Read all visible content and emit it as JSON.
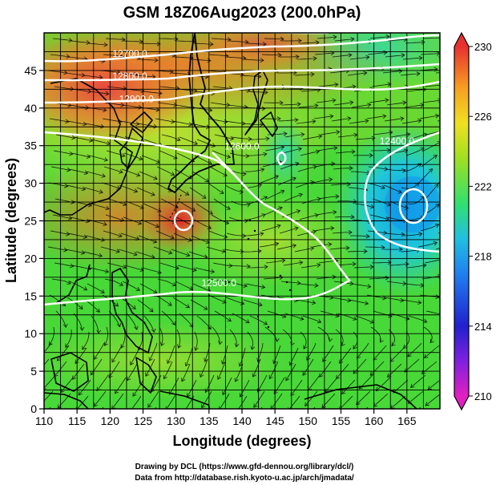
{
  "title": "GSM 18Z06Aug2023 (200.0hPa)",
  "xaxis": {
    "label": "Longitude (degrees)",
    "range": [
      110,
      170
    ],
    "ticks": [
      110,
      115,
      120,
      125,
      130,
      135,
      140,
      145,
      150,
      155,
      160,
      165
    ]
  },
  "yaxis": {
    "label": "Latitude  (degrees)",
    "range": [
      0,
      50
    ],
    "ticks": [
      0,
      5,
      10,
      15,
      20,
      25,
      30,
      35,
      40,
      45
    ]
  },
  "colorbar": {
    "range": [
      210,
      230
    ],
    "ticks": [
      210,
      214,
      218,
      222,
      226,
      230
    ]
  },
  "contour_labels": [
    {
      "text": "12500.0",
      "lon": 136.5,
      "lat": 16.3
    },
    {
      "text": "12700.0",
      "lon": 123.0,
      "lat": 46.8
    },
    {
      "text": "12800.0",
      "lon": 123.0,
      "lat": 43.8
    },
    {
      "text": "12900.0",
      "lon": 124.0,
      "lat": 40.8
    },
    {
      "text": "12600.0",
      "lon": 140.0,
      "lat": 34.5
    },
    {
      "text": "12400.0",
      "lon": 163.5,
      "lat": 35.2
    }
  ],
  "credits": [
    "Drawing by DCL (https://www.gfd-dennou.org/library/dcl/)",
    "Data from http://database.rish.kyoto-u.ac.jp/arch/jmadata/"
  ]
}
